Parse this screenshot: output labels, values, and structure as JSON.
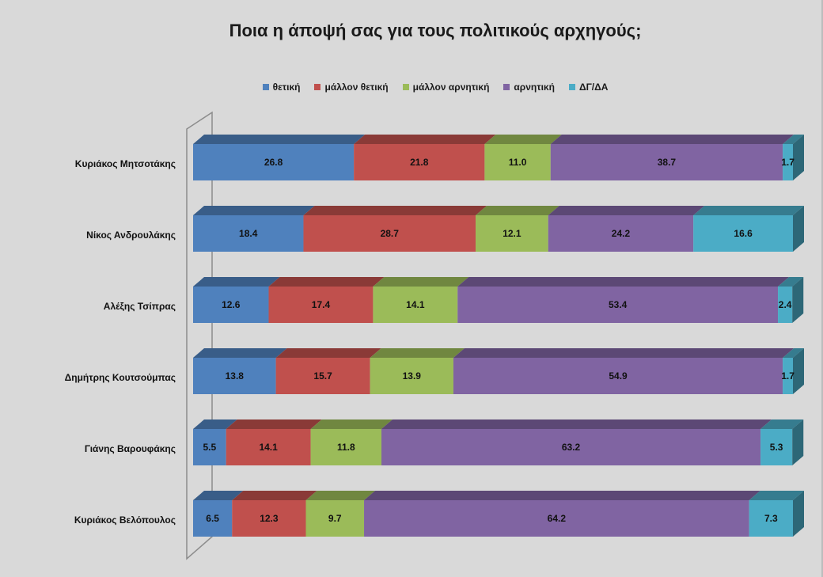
{
  "chart_data": {
    "type": "bar",
    "orientation": "horizontal",
    "stacked": true,
    "title": "Ποια η άποψή σας για τους πολιτικούς αρχηγούς;",
    "categories": [
      "Κυριάκος Μητσοτάκης",
      "Νίκος Ανδρουλάκης",
      "Αλέξης Τσίπρας",
      "Δημήτρης Κουτσούμπας",
      "Γιάνης Βαρουφάκης",
      "Κυριάκος Βελόπουλος"
    ],
    "series": [
      {
        "name": "θετική",
        "color": "#4f81bd",
        "values": [
          26.8,
          18.4,
          12.6,
          13.8,
          5.5,
          6.5
        ]
      },
      {
        "name": "μάλλον θετική",
        "color": "#c0504d",
        "values": [
          21.8,
          28.7,
          17.4,
          15.7,
          14.1,
          12.3
        ]
      },
      {
        "name": "μάλλον αρνητική",
        "color": "#9bbb59",
        "values": [
          11.0,
          12.1,
          14.1,
          13.9,
          11.8,
          9.7
        ]
      },
      {
        "name": "αρνητική",
        "color": "#8064a2",
        "values": [
          38.7,
          24.2,
          53.4,
          54.9,
          63.2,
          64.2
        ]
      },
      {
        "name": "ΔΓ/ΔΑ",
        "color": "#4bacc6",
        "values": [
          1.7,
          16.6,
          2.4,
          1.7,
          5.3,
          7.3
        ]
      }
    ],
    "value_labels": [
      [
        "26.8",
        "21.8",
        "11.0",
        "38.7",
        "1.7"
      ],
      [
        "18.4",
        "28.7",
        "12.1",
        "24.2",
        "16.6"
      ],
      [
        "12.6",
        "17.4",
        "14.1",
        "53.4",
        "2.4"
      ],
      [
        "13.8",
        "15.7",
        "13.9",
        "54.9",
        "1.7"
      ],
      [
        "5.5",
        "14.1",
        "11.8",
        "63.2",
        "5.3"
      ],
      [
        "6.5",
        "12.3",
        "9.7",
        "64.2",
        "7.3"
      ]
    ],
    "xlim": [
      0,
      100
    ],
    "legend_position": "top",
    "grid": false,
    "style": "3d"
  }
}
